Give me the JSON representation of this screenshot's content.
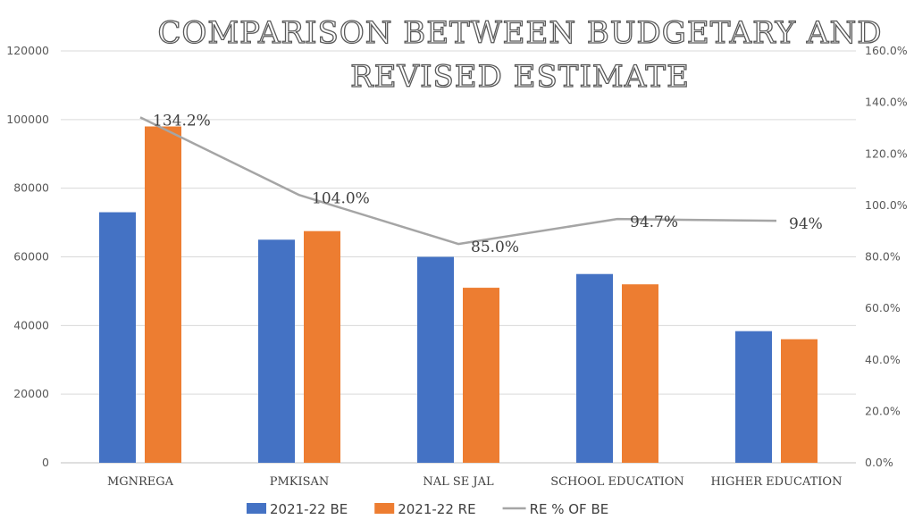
{
  "chart_data": {
    "type": "bar",
    "title_line1": "COMPARISON BETWEEN BUDGETARY AND",
    "title_line2": "REVISED ESTIMATE",
    "categories": [
      "MGNREGA",
      "PMKISAN",
      "NAL SE JAL",
      "SCHOOL EDUCATION",
      "HIGHER EDUCATION"
    ],
    "series": [
      {
        "name": "2021-22 BE",
        "type": "bar",
        "color": "#4472C4",
        "values": [
          73000,
          65000,
          60000,
          55000,
          38350
        ]
      },
      {
        "name": "2021-22 RE",
        "type": "bar",
        "color": "#ED7D31",
        "values": [
          98000,
          67500,
          51000,
          52000,
          36000
        ]
      },
      {
        "name": "RE % OF BE",
        "type": "line",
        "axis": "secondary",
        "color": "#A5A5A5",
        "values": [
          134.2,
          104.0,
          85.0,
          94.7,
          94.0
        ]
      }
    ],
    "data_labels": [
      "134.2%",
      "104.0%",
      "85.0%",
      "94.7%",
      "94%"
    ],
    "y_left": {
      "min": 0,
      "max": 120000,
      "step": 20000,
      "ticks": [
        "0",
        "20000",
        "40000",
        "60000",
        "80000",
        "100000",
        "120000"
      ]
    },
    "y_right": {
      "min": 0,
      "max": 160,
      "step": 20,
      "ticks": [
        "0.0%",
        "20.0%",
        "40.0%",
        "60.0%",
        "80.0%",
        "100.0%",
        "120.0%",
        "140.0%",
        "160.0%"
      ]
    },
    "gridlines": true,
    "legend_position": "bottom"
  }
}
